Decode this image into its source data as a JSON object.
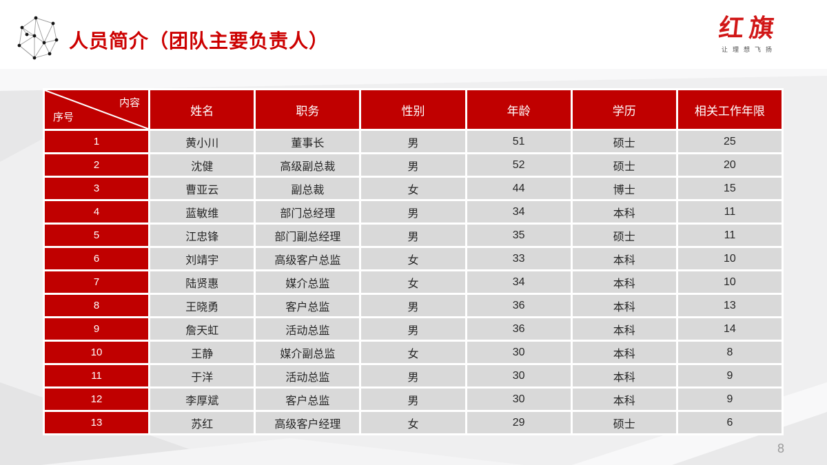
{
  "slide": {
    "title": "人员简介（团队主要负责人）",
    "page_number": "8",
    "logo": {
      "brand": "红旗",
      "tagline": "让理想飞扬"
    }
  },
  "colors": {
    "accent_red": "#c00000",
    "title_red": "#cc0000",
    "cell_gray": "#d9d9d9",
    "background_gray": "#efeff0"
  },
  "table": {
    "corner_top": "内容",
    "corner_bottom": "序号",
    "headers": [
      "姓名",
      "职务",
      "性别",
      "年龄",
      "学历",
      "相关工作年限"
    ],
    "rows": [
      {
        "no": "1",
        "name": "黄小川",
        "position": "董事长",
        "gender": "男",
        "age": "51",
        "education": "硕士",
        "years": "25"
      },
      {
        "no": "2",
        "name": "沈健",
        "position": "高级副总裁",
        "gender": "男",
        "age": "52",
        "education": "硕士",
        "years": "20"
      },
      {
        "no": "3",
        "name": "曹亚云",
        "position": "副总裁",
        "gender": "女",
        "age": "44",
        "education": "博士",
        "years": "15"
      },
      {
        "no": "4",
        "name": "蓝敏维",
        "position": "部门总经理",
        "gender": "男",
        "age": "34",
        "education": "本科",
        "years": "11"
      },
      {
        "no": "5",
        "name": "江忠锋",
        "position": "部门副总经理",
        "gender": "男",
        "age": "35",
        "education": "硕士",
        "years": "11"
      },
      {
        "no": "6",
        "name": "刘靖宇",
        "position": "高级客户总监",
        "gender": "女",
        "age": "33",
        "education": "本科",
        "years": "10"
      },
      {
        "no": "7",
        "name": "陆贤惠",
        "position": "媒介总监",
        "gender": "女",
        "age": "34",
        "education": "本科",
        "years": "10"
      },
      {
        "no": "8",
        "name": "王晓勇",
        "position": "客户总监",
        "gender": "男",
        "age": "36",
        "education": "本科",
        "years": "13"
      },
      {
        "no": "9",
        "name": "詹天虹",
        "position": "活动总监",
        "gender": "男",
        "age": "36",
        "education": "本科",
        "years": "14"
      },
      {
        "no": "10",
        "name": "王静",
        "position": "媒介副总监",
        "gender": "女",
        "age": "30",
        "education": "本科",
        "years": "8"
      },
      {
        "no": "11",
        "name": "于洋",
        "position": "活动总监",
        "gender": "男",
        "age": "30",
        "education": "本科",
        "years": "9"
      },
      {
        "no": "12",
        "name": "李厚斌",
        "position": "客户总监",
        "gender": "男",
        "age": "30",
        "education": "本科",
        "years": "9"
      },
      {
        "no": "13",
        "name": "苏红",
        "position": "高级客户经理",
        "gender": "女",
        "age": "29",
        "education": "硕士",
        "years": "6"
      }
    ]
  }
}
